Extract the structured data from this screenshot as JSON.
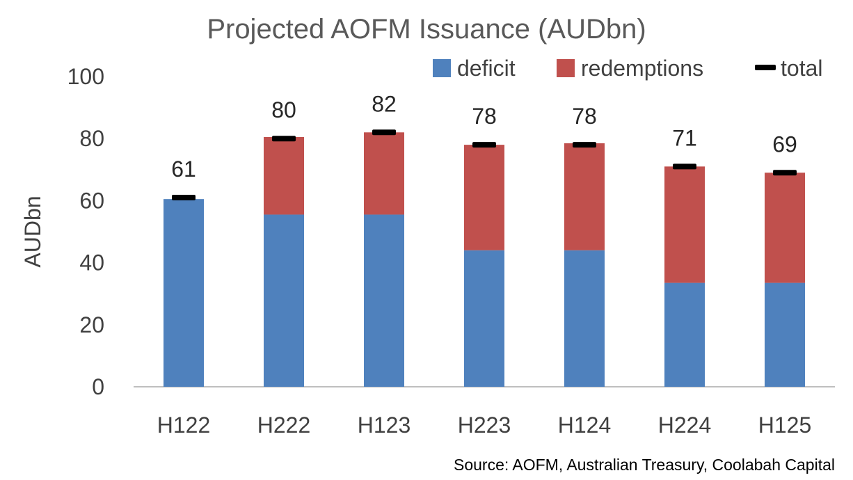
{
  "chart_data": {
    "type": "bar",
    "stacked": true,
    "title": "Projected AOFM Issuance (AUDbn)",
    "ylabel": "AUDbn",
    "xlabel": "",
    "ylim": [
      0,
      100
    ],
    "yticks": [
      "0",
      "20",
      "40",
      "60",
      "80",
      "100"
    ],
    "categories": [
      "H122",
      "H222",
      "H123",
      "H223",
      "H124",
      "H224",
      "H125"
    ],
    "series": [
      {
        "name": "deficit",
        "color": "#4F81BD",
        "values": [
          60.5,
          55.5,
          55.5,
          44,
          44,
          33.5,
          33.5
        ]
      },
      {
        "name": "redemptions",
        "color": "#C0504D",
        "values": [
          0,
          25,
          26.5,
          34,
          34.5,
          37.5,
          35.5
        ]
      }
    ],
    "total": {
      "name": "total",
      "color": "#000000",
      "values": [
        61,
        80,
        82,
        78,
        78,
        71,
        69
      ]
    },
    "data_labels": [
      "61",
      "80",
      "82",
      "78",
      "78",
      "71",
      "69"
    ],
    "legend_position": "top-right",
    "grid": false
  },
  "source": "Source: AOFM, Australian Treasury, Coolabah Capital"
}
